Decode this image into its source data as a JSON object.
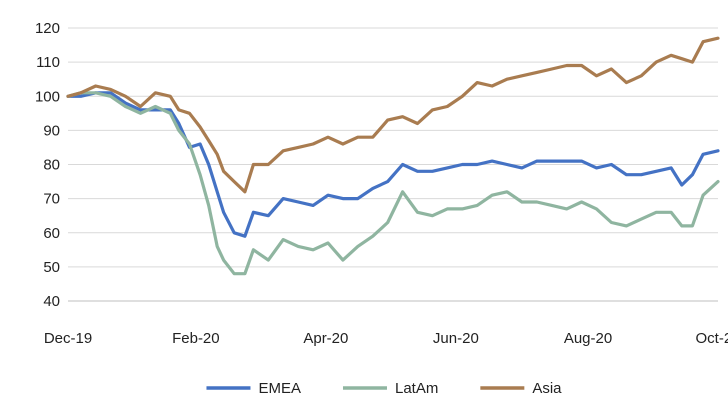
{
  "chart_data": {
    "type": "line",
    "title": "",
    "xlabel": "",
    "ylabel": "",
    "ylim": [
      40,
      120
    ],
    "yticks": [
      40,
      50,
      60,
      70,
      80,
      90,
      100,
      110,
      120
    ],
    "xlim": [
      "2019-12-31",
      "2020-10-31"
    ],
    "xticks": [
      {
        "date": "2019-12-31",
        "label": "Dec-19"
      },
      {
        "date": "2020-02-29",
        "label": "Feb-20"
      },
      {
        "date": "2020-04-30",
        "label": "Apr-20"
      },
      {
        "date": "2020-06-30",
        "label": "Jun-20"
      },
      {
        "date": "2020-08-31",
        "label": "Aug-20"
      },
      {
        "date": "2020-10-31",
        "label": "Oct-20"
      }
    ],
    "grid": "horizontal",
    "legend": "bottom",
    "series": [
      {
        "name": "EMEA",
        "color": "#4472c4",
        "points": [
          [
            "2019-12-31",
            100
          ],
          [
            "2020-01-06",
            100
          ],
          [
            "2020-01-13",
            101
          ],
          [
            "2020-01-20",
            101
          ],
          [
            "2020-01-27",
            98
          ],
          [
            "2020-02-03",
            96
          ],
          [
            "2020-02-10",
            96
          ],
          [
            "2020-02-17",
            96
          ],
          [
            "2020-02-21",
            92
          ],
          [
            "2020-02-26",
            85
          ],
          [
            "2020-03-02",
            86
          ],
          [
            "2020-03-06",
            80
          ],
          [
            "2020-03-10",
            72
          ],
          [
            "2020-03-13",
            66
          ],
          [
            "2020-03-18",
            60
          ],
          [
            "2020-03-23",
            59
          ],
          [
            "2020-03-27",
            66
          ],
          [
            "2020-04-03",
            65
          ],
          [
            "2020-04-10",
            70
          ],
          [
            "2020-04-17",
            69
          ],
          [
            "2020-04-24",
            68
          ],
          [
            "2020-05-01",
            71
          ],
          [
            "2020-05-08",
            70
          ],
          [
            "2020-05-15",
            70
          ],
          [
            "2020-05-22",
            73
          ],
          [
            "2020-05-29",
            75
          ],
          [
            "2020-06-05",
            80
          ],
          [
            "2020-06-12",
            78
          ],
          [
            "2020-06-19",
            78
          ],
          [
            "2020-06-26",
            79
          ],
          [
            "2020-07-03",
            80
          ],
          [
            "2020-07-10",
            80
          ],
          [
            "2020-07-17",
            81
          ],
          [
            "2020-07-24",
            80
          ],
          [
            "2020-07-31",
            79
          ],
          [
            "2020-08-07",
            81
          ],
          [
            "2020-08-14",
            81
          ],
          [
            "2020-08-21",
            81
          ],
          [
            "2020-08-28",
            81
          ],
          [
            "2020-09-04",
            79
          ],
          [
            "2020-09-11",
            80
          ],
          [
            "2020-09-18",
            77
          ],
          [
            "2020-09-25",
            77
          ],
          [
            "2020-10-02",
            78
          ],
          [
            "2020-10-09",
            79
          ],
          [
            "2020-10-14",
            74
          ],
          [
            "2020-10-19",
            77
          ],
          [
            "2020-10-24",
            83
          ],
          [
            "2020-10-31",
            84
          ]
        ]
      },
      {
        "name": "LatAm",
        "color": "#8fb5a0",
        "points": [
          [
            "2019-12-31",
            100
          ],
          [
            "2020-01-06",
            101
          ],
          [
            "2020-01-13",
            101
          ],
          [
            "2020-01-20",
            100
          ],
          [
            "2020-01-27",
            97
          ],
          [
            "2020-02-03",
            95
          ],
          [
            "2020-02-10",
            97
          ],
          [
            "2020-02-17",
            95
          ],
          [
            "2020-02-21",
            90
          ],
          [
            "2020-02-26",
            86
          ],
          [
            "2020-03-02",
            77
          ],
          [
            "2020-03-06",
            68
          ],
          [
            "2020-03-10",
            56
          ],
          [
            "2020-03-13",
            52
          ],
          [
            "2020-03-18",
            48
          ],
          [
            "2020-03-23",
            48
          ],
          [
            "2020-03-27",
            55
          ],
          [
            "2020-04-03",
            52
          ],
          [
            "2020-04-10",
            58
          ],
          [
            "2020-04-17",
            56
          ],
          [
            "2020-04-24",
            55
          ],
          [
            "2020-05-01",
            57
          ],
          [
            "2020-05-08",
            52
          ],
          [
            "2020-05-15",
            56
          ],
          [
            "2020-05-22",
            59
          ],
          [
            "2020-05-29",
            63
          ],
          [
            "2020-06-05",
            72
          ],
          [
            "2020-06-12",
            66
          ],
          [
            "2020-06-19",
            65
          ],
          [
            "2020-06-26",
            67
          ],
          [
            "2020-07-03",
            67
          ],
          [
            "2020-07-10",
            68
          ],
          [
            "2020-07-17",
            71
          ],
          [
            "2020-07-24",
            72
          ],
          [
            "2020-07-31",
            69
          ],
          [
            "2020-08-07",
            69
          ],
          [
            "2020-08-14",
            68
          ],
          [
            "2020-08-21",
            67
          ],
          [
            "2020-08-28",
            69
          ],
          [
            "2020-09-04",
            67
          ],
          [
            "2020-09-11",
            63
          ],
          [
            "2020-09-18",
            62
          ],
          [
            "2020-09-25",
            64
          ],
          [
            "2020-10-02",
            66
          ],
          [
            "2020-10-09",
            66
          ],
          [
            "2020-10-14",
            62
          ],
          [
            "2020-10-19",
            62
          ],
          [
            "2020-10-24",
            71
          ],
          [
            "2020-10-31",
            75
          ]
        ]
      },
      {
        "name": "Asia",
        "color": "#a97c50",
        "points": [
          [
            "2019-12-31",
            100
          ],
          [
            "2020-01-06",
            101
          ],
          [
            "2020-01-13",
            103
          ],
          [
            "2020-01-20",
            102
          ],
          [
            "2020-01-27",
            100
          ],
          [
            "2020-02-03",
            97
          ],
          [
            "2020-02-10",
            101
          ],
          [
            "2020-02-17",
            100
          ],
          [
            "2020-02-21",
            96
          ],
          [
            "2020-02-26",
            95
          ],
          [
            "2020-03-02",
            91
          ],
          [
            "2020-03-06",
            87
          ],
          [
            "2020-03-10",
            83
          ],
          [
            "2020-03-13",
            78
          ],
          [
            "2020-03-18",
            75
          ],
          [
            "2020-03-23",
            72
          ],
          [
            "2020-03-27",
            80
          ],
          [
            "2020-04-03",
            80
          ],
          [
            "2020-04-10",
            84
          ],
          [
            "2020-04-17",
            85
          ],
          [
            "2020-04-24",
            86
          ],
          [
            "2020-05-01",
            88
          ],
          [
            "2020-05-08",
            86
          ],
          [
            "2020-05-15",
            88
          ],
          [
            "2020-05-22",
            88
          ],
          [
            "2020-05-29",
            93
          ],
          [
            "2020-06-05",
            94
          ],
          [
            "2020-06-12",
            92
          ],
          [
            "2020-06-19",
            96
          ],
          [
            "2020-06-26",
            97
          ],
          [
            "2020-07-03",
            100
          ],
          [
            "2020-07-10",
            104
          ],
          [
            "2020-07-17",
            103
          ],
          [
            "2020-07-24",
            105
          ],
          [
            "2020-07-31",
            106
          ],
          [
            "2020-08-07",
            107
          ],
          [
            "2020-08-14",
            108
          ],
          [
            "2020-08-21",
            109
          ],
          [
            "2020-08-28",
            109
          ],
          [
            "2020-09-04",
            106
          ],
          [
            "2020-09-11",
            108
          ],
          [
            "2020-09-18",
            104
          ],
          [
            "2020-09-25",
            106
          ],
          [
            "2020-10-02",
            110
          ],
          [
            "2020-10-09",
            112
          ],
          [
            "2020-10-14",
            111
          ],
          [
            "2020-10-19",
            110
          ],
          [
            "2020-10-24",
            116
          ],
          [
            "2020-10-31",
            117
          ]
        ]
      }
    ]
  }
}
